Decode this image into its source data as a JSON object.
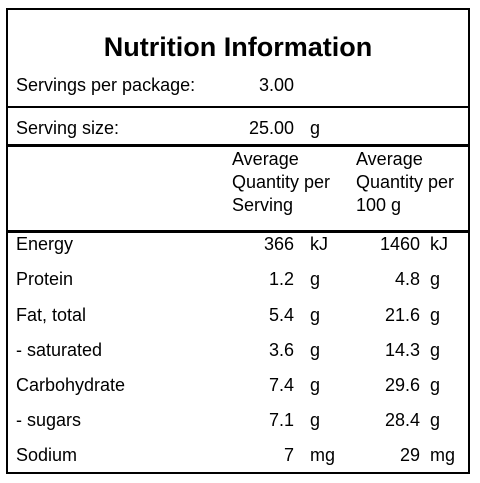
{
  "panel": {
    "title": "Nutrition Information",
    "servings": {
      "label": "Servings per package:",
      "value": "3.00"
    },
    "serving_size": {
      "label": "Serving size:",
      "value": "25.00",
      "unit": "g"
    },
    "columns": {
      "per_serving": [
        "Average",
        "Quantity per",
        "Serving"
      ],
      "per_100g": [
        "Average",
        "Quantity per",
        "100 g"
      ]
    },
    "rows": [
      {
        "name": "Energy",
        "serving": "366",
        "serving_unit": "kJ",
        "per100": "1460",
        "per100_unit": "kJ"
      },
      {
        "name": "Protein",
        "serving": "1.2",
        "serving_unit": "g",
        "per100": "4.8",
        "per100_unit": "g"
      },
      {
        "name": "Fat, total",
        "serving": "5.4",
        "serving_unit": "g",
        "per100": "21.6",
        "per100_unit": "g"
      },
      {
        "name": "- saturated",
        "serving": "3.6",
        "serving_unit": "g",
        "per100": "14.3",
        "per100_unit": "g"
      },
      {
        "name": "Carbohydrate",
        "serving": "7.4",
        "serving_unit": "g",
        "per100": "29.6",
        "per100_unit": "g"
      },
      {
        "name": "- sugars",
        "serving": "7.1",
        "serving_unit": "g",
        "per100": "28.4",
        "per100_unit": "g"
      },
      {
        "name": "Sodium",
        "serving": "7",
        "serving_unit": "mg",
        "per100": "29",
        "per100_unit": "mg"
      }
    ]
  }
}
